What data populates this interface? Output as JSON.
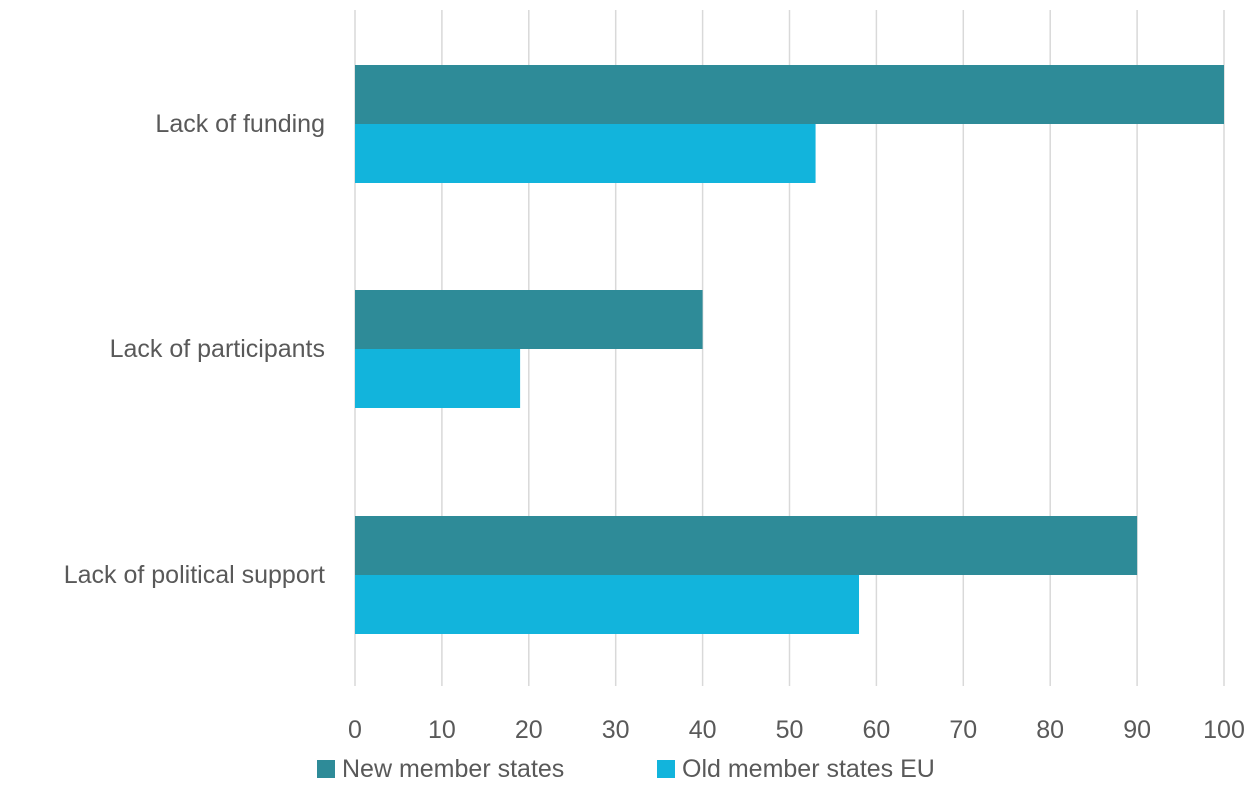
{
  "chart_data": {
    "type": "bar",
    "orientation": "horizontal",
    "categories": [
      "Lack of funding",
      "Lack of participants",
      "Lack of political support"
    ],
    "series": [
      {
        "name": "New member states",
        "values": [
          100,
          40,
          90
        ],
        "color": "#2e8b98"
      },
      {
        "name": "Old member states EU",
        "values": [
          53,
          19,
          58
        ],
        "color": "#12b4dc"
      }
    ],
    "xlim": [
      0,
      100
    ],
    "xticks": [
      0,
      10,
      20,
      30,
      40,
      50,
      60,
      70,
      80,
      90,
      100
    ],
    "title": "",
    "xlabel": "",
    "ylabel": "",
    "grid": "vertical",
    "legend_position": "bottom"
  }
}
